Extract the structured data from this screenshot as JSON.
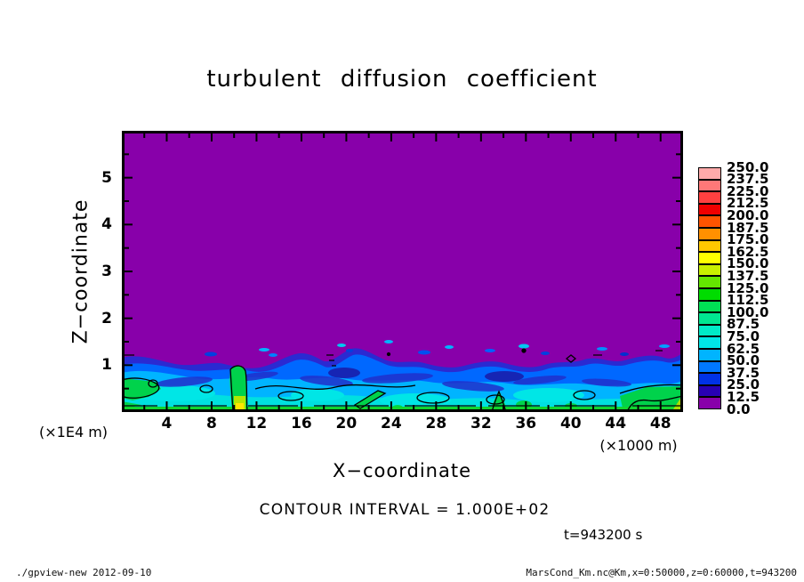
{
  "title": "turbulent diffusion coefficient",
  "axes": {
    "x": {
      "label": "X−coordinate",
      "unit": "(×1000 m)",
      "ticks": [
        4,
        8,
        12,
        16,
        20,
        24,
        28,
        32,
        36,
        40,
        44,
        48
      ]
    },
    "z": {
      "label": "Z−coordinate",
      "unit": "(×1E4 m)",
      "ticks": [
        1,
        2,
        3,
        4,
        5
      ]
    }
  },
  "colorbar": {
    "levels_desc": [
      "250.0",
      "237.5",
      "225.0",
      "212.5",
      "200.0",
      "187.5",
      "175.0",
      "162.5",
      "150.0",
      "137.5",
      "125.0",
      "112.5",
      "100.0",
      "87.5",
      "75.0",
      "62.5",
      "50.0",
      "37.5",
      "25.0",
      "12.5",
      "0.0"
    ],
    "colors_desc": [
      "#ffaaaa",
      "#ff7878",
      "#ff4040",
      "#f00000",
      "#ff5400",
      "#ff9000",
      "#ffc800",
      "#ffff00",
      "#c8f000",
      "#64e600",
      "#00dc00",
      "#00e055",
      "#00e691",
      "#00eac8",
      "#00e6e6",
      "#00b4ff",
      "#0078ff",
      "#0032e6",
      "#2800b4",
      "#8800aa"
    ]
  },
  "annotations": {
    "contour_interval": "CONTOUR INTERVAL = 1.000E+02",
    "time": "t=943200 s"
  },
  "footer": {
    "left": "./gpview-new  2012-09-10",
    "right": "MarsCond_Km.nc@Km,x=0:50000,z=0:60000,t=943200"
  },
  "chart_data": {
    "type": "heatmap",
    "subtype": "filled_contour_with_line_contours",
    "title": "turbulent diffusion coefficient",
    "xlabel": "X-coordinate",
    "ylabel": "Z-coordinate",
    "x_unit": "x1000 m",
    "y_unit": "x1E4 m",
    "xlim": [
      0,
      50
    ],
    "ylim": [
      0,
      6
    ],
    "x_ticks": [
      4,
      8,
      12,
      16,
      20,
      24,
      28,
      32,
      36,
      40,
      44,
      48
    ],
    "y_ticks": [
      1,
      2,
      3,
      4,
      5
    ],
    "fill_levels": [
      0,
      12.5,
      25,
      37.5,
      50,
      62.5,
      75,
      87.5,
      100,
      112.5,
      125,
      137.5,
      150,
      162.5,
      175,
      187.5,
      200,
      212.5,
      225,
      237.5,
      250
    ],
    "palette_low_to_high": [
      "#8800aa",
      "#2800b4",
      "#0032e6",
      "#0078ff",
      "#00b4ff",
      "#00e6e6",
      "#00eac8",
      "#00e691",
      "#00e055",
      "#00dc00",
      "#64e600",
      "#c8f000",
      "#ffff00",
      "#ffc800",
      "#ff9000",
      "#ff5400",
      "#f00000",
      "#ff4040",
      "#ff7878",
      "#ffaaaa"
    ],
    "line_contour_interval": 100.0,
    "time_seconds": 943200,
    "field_summary": {
      "description": "Turbulent diffusion coefficient in an x-z section. Values are 0-12.5 (purple background) everywhere above z~1 (x1E4 m). A turbulent boundary layer occupies z<~1 with patchy values of 25-100 (dark blue to cyan), local maxima above 100 (green, outlined by the 100 line contour) near the surface, and a thin bright-green near-surface strip. Small detached plumes of 25-60 float just above the layer top.",
      "background_value_band": [
        0,
        12.5
      ],
      "boundary_layer_value_band": [
        25,
        100
      ],
      "layer_top_profile": {
        "x_1000m": [
          0,
          5,
          10,
          15,
          20,
          25,
          30,
          35,
          40,
          45,
          50
        ],
        "z_1e4m": [
          1.0,
          0.95,
          1.05,
          0.95,
          0.9,
          1.0,
          0.95,
          1.0,
          0.95,
          1.05,
          1.0
        ]
      },
      "surface_maxima_regions_x_1000m": [
        [
          0,
          3.2
        ],
        [
          10,
          11.1
        ],
        [
          20.8,
          23
        ],
        [
          33.3,
          34.2
        ],
        [
          45.6,
          50
        ]
      ],
      "peak_value_location_x_1000m": 10.5,
      "peak_value_band": [
        150,
        175
      ]
    }
  }
}
